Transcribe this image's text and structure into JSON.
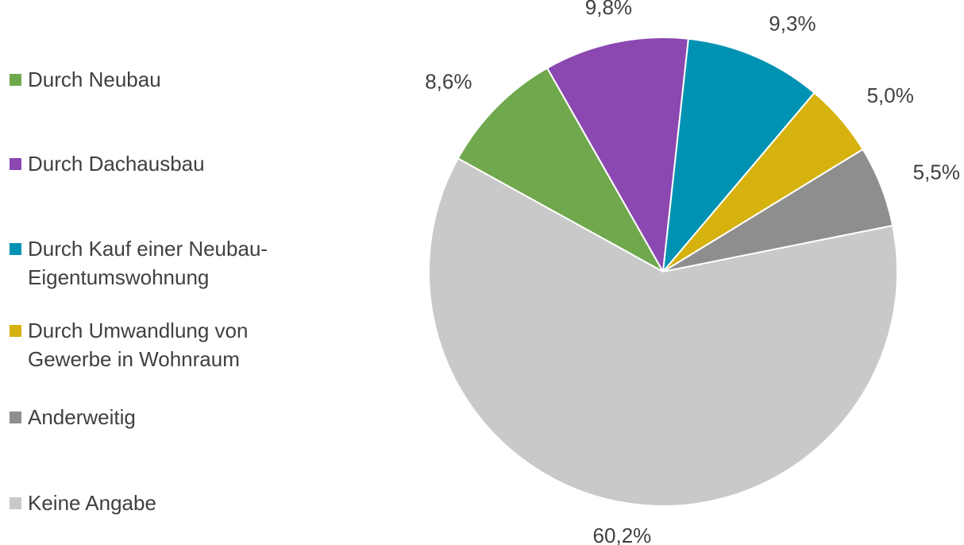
{
  "chart_data": {
    "type": "pie",
    "categories": [
      "Durch Neubau",
      "Durch Dachausbau",
      "Durch Kauf einer Neubau-Eigentumswohnung",
      "Durch Umwandlung von Gewerbe in Wohnraum",
      "Anderweitig",
      "Keine Angabe"
    ],
    "values": [
      8.6,
      9.8,
      9.3,
      5.0,
      5.5,
      60.2
    ],
    "value_labels": [
      "8,6%",
      "9,8%",
      "9,3%",
      "5,0%",
      "5,5%",
      "60,2%"
    ],
    "colors": [
      "#70a84e",
      "#8b48b0",
      "#0092b2",
      "#d6b20e",
      "#8e8e8e",
      "#c9c9c9"
    ],
    "legend": "left"
  }
}
